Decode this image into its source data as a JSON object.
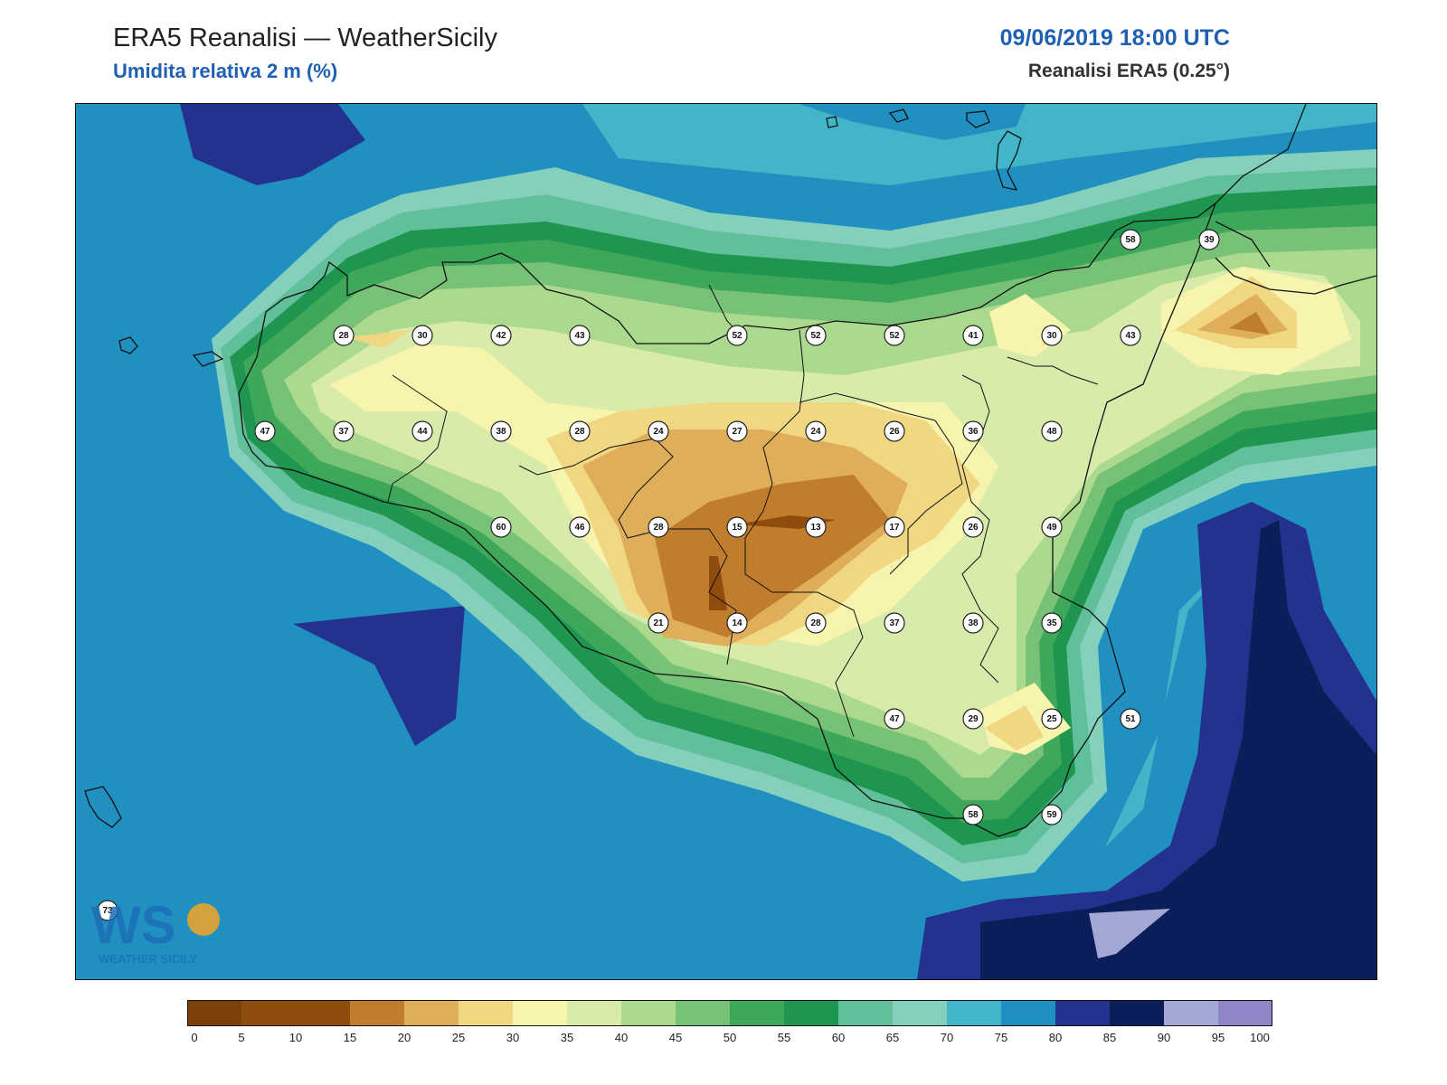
{
  "header": {
    "title": "ERA5 Reanalisi — WeatherSicily",
    "subtitle": "Umidita relativa 2 m (%)",
    "datetime": "09/06/2019 18:00 UTC",
    "source": "Reanalisi ERA5 (0.25°)"
  },
  "logo": {
    "text": "WEATHER SICILY",
    "mark": "WS"
  },
  "map": {
    "variable": "relative humidity 2 m",
    "unit": "%",
    "stations": [
      {
        "value": 28,
        "lon": 12.5,
        "lat": 38.25
      },
      {
        "value": 30,
        "lon": 12.75,
        "lat": 38.25
      },
      {
        "value": 42,
        "lon": 13.0,
        "lat": 38.25
      },
      {
        "value": 43,
        "lon": 13.25,
        "lat": 38.25
      },
      {
        "value": 52,
        "lon": 13.75,
        "lat": 38.25
      },
      {
        "value": 52,
        "lon": 14.0,
        "lat": 38.25
      },
      {
        "value": 52,
        "lon": 14.25,
        "lat": 38.25
      },
      {
        "value": 41,
        "lon": 14.5,
        "lat": 38.25
      },
      {
        "value": 30,
        "lon": 14.75,
        "lat": 38.25
      },
      {
        "value": 43,
        "lon": 15.0,
        "lat": 38.25
      },
      {
        "value": 58,
        "lon": 15.0,
        "lat": 38.5
      },
      {
        "value": 39,
        "lon": 15.25,
        "lat": 38.5
      },
      {
        "value": 47,
        "lon": 12.25,
        "lat": 38.0
      },
      {
        "value": 37,
        "lon": 12.5,
        "lat": 38.0
      },
      {
        "value": 44,
        "lon": 12.75,
        "lat": 38.0
      },
      {
        "value": 38,
        "lon": 13.0,
        "lat": 38.0
      },
      {
        "value": 28,
        "lon": 13.25,
        "lat": 38.0
      },
      {
        "value": 24,
        "lon": 13.5,
        "lat": 38.0
      },
      {
        "value": 27,
        "lon": 13.75,
        "lat": 38.0
      },
      {
        "value": 24,
        "lon": 14.0,
        "lat": 38.0
      },
      {
        "value": 26,
        "lon": 14.25,
        "lat": 38.0
      },
      {
        "value": 36,
        "lon": 14.5,
        "lat": 38.0
      },
      {
        "value": 48,
        "lon": 14.75,
        "lat": 38.0
      },
      {
        "value": 60,
        "lon": 13.0,
        "lat": 37.75
      },
      {
        "value": 46,
        "lon": 13.25,
        "lat": 37.75
      },
      {
        "value": 28,
        "lon": 13.5,
        "lat": 37.75
      },
      {
        "value": 15,
        "lon": 13.75,
        "lat": 37.75
      },
      {
        "value": 13,
        "lon": 14.0,
        "lat": 37.75
      },
      {
        "value": 17,
        "lon": 14.25,
        "lat": 37.75
      },
      {
        "value": 26,
        "lon": 14.5,
        "lat": 37.75
      },
      {
        "value": 49,
        "lon": 14.75,
        "lat": 37.75
      },
      {
        "value": 21,
        "lon": 13.5,
        "lat": 37.5
      },
      {
        "value": 14,
        "lon": 13.75,
        "lat": 37.5
      },
      {
        "value": 28,
        "lon": 14.0,
        "lat": 37.5
      },
      {
        "value": 37,
        "lon": 14.25,
        "lat": 37.5
      },
      {
        "value": 38,
        "lon": 14.5,
        "lat": 37.5
      },
      {
        "value": 35,
        "lon": 14.75,
        "lat": 37.5
      },
      {
        "value": 47,
        "lon": 14.25,
        "lat": 37.25
      },
      {
        "value": 29,
        "lon": 14.5,
        "lat": 37.25
      },
      {
        "value": 25,
        "lon": 14.75,
        "lat": 37.25
      },
      {
        "value": 51,
        "lon": 15.0,
        "lat": 37.25
      },
      {
        "value": 58,
        "lon": 14.5,
        "lat": 37.0
      },
      {
        "value": 59,
        "lon": 14.75,
        "lat": 37.0
      },
      {
        "value": 73,
        "lon": 11.75,
        "lat": 36.75
      }
    ]
  },
  "colorbar": {
    "bounds": [
      0,
      5,
      10,
      15,
      20,
      25,
      30,
      35,
      40,
      45,
      50,
      55,
      60,
      65,
      70,
      75,
      80,
      85,
      90,
      95,
      100
    ],
    "colors": [
      "#7a4208",
      "#8f4c0c",
      "#8f4c0c",
      "#c07d2d",
      "#deae5a",
      "#f2d782",
      "#f6f4ad",
      "#d8ebaa",
      "#abd98d",
      "#77c277",
      "#3ea75a",
      "#1e9650",
      "#61c09b",
      "#84d0bc",
      "#42b6c8",
      "#2090c0",
      "#24318f",
      "#0b1e59",
      "#a4a8d6",
      "#8f86c8"
    ]
  }
}
